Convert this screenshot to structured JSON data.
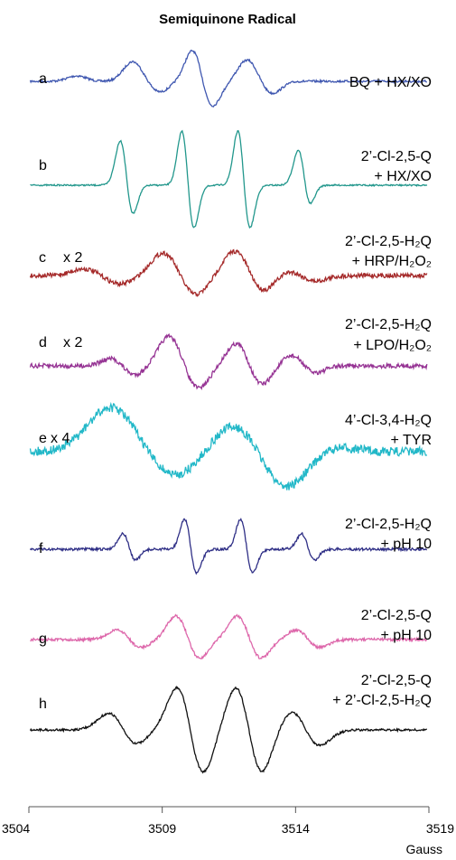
{
  "chart_data": {
    "type": "line",
    "title": "Semiquinone Radical",
    "xlabel": "Gauss",
    "xlim": [
      3504,
      3519
    ],
    "xticks": [
      "3504",
      "3509",
      "3514",
      "3519"
    ],
    "grid": false,
    "series": [
      {
        "id": "a",
        "letter": "a",
        "scale": "",
        "color": "#3f57b0",
        "desc": [
          "BQ + HX/XO"
        ],
        "peaks": [
          [
            3505.8,
            0.15
          ],
          [
            3507.9,
            0.55
          ],
          [
            3508.9,
            -0.3
          ],
          [
            3510.2,
            1.0
          ],
          [
            3510.8,
            -0.8
          ],
          [
            3512.2,
            0.6
          ],
          [
            3513.1,
            -0.35
          ]
        ]
      },
      {
        "id": "b",
        "letter": "b",
        "scale": "",
        "color": "#22978c",
        "desc": [
          "2’-Cl-2,5-Q",
          "+ HX/XO"
        ],
        "peaks": [
          [
            3507.5,
            0.8
          ],
          [
            3507.8,
            -0.6
          ],
          [
            3509.8,
            1.0
          ],
          [
            3510.1,
            -0.8
          ],
          [
            3511.9,
            1.0
          ],
          [
            3512.2,
            -0.8
          ],
          [
            3514.2,
            0.8
          ],
          [
            3514.4,
            -0.6
          ]
        ]
      },
      {
        "id": "c",
        "letter": "c",
        "scale": "x 2",
        "color": "#a52a2a",
        "desc": [
          "2’-Cl-2,5-H₂Q",
          "+ HRP/H₂O₂"
        ],
        "peaks": [
          [
            3506.1,
            0.2
          ],
          [
            3507.4,
            -0.25
          ],
          [
            3509.1,
            0.7
          ],
          [
            3510.2,
            -0.6
          ],
          [
            3511.8,
            0.8
          ],
          [
            3512.7,
            -0.55
          ],
          [
            3513.8,
            0.2
          ],
          [
            3514.6,
            -0.2
          ]
        ]
      },
      {
        "id": "d",
        "letter": "d",
        "scale": "x 2",
        "color": "#963494",
        "desc": [
          "2’-Cl-2,5-H₂Q",
          "+ LPO/H₂O₂"
        ],
        "peaks": [
          [
            3507.3,
            0.35
          ],
          [
            3507.8,
            -0.4
          ],
          [
            3509.3,
            0.9
          ],
          [
            3510.3,
            -0.7
          ],
          [
            3511.9,
            0.8
          ],
          [
            3512.6,
            -0.7
          ],
          [
            3514.0,
            0.45
          ],
          [
            3514.5,
            -0.35
          ]
        ]
      },
      {
        "id": "e",
        "letter": "e",
        "scale": "x 4",
        "color": "#22b8c8",
        "desc": [
          "4’-Cl-3,4-H₂Q",
          "+ TYR"
        ],
        "peaks": [
          [
            3507.1,
            0.9
          ],
          [
            3509.5,
            -0.5
          ],
          [
            3511.8,
            0.6
          ],
          [
            3513.6,
            -0.8
          ],
          [
            3515.1,
            0.15
          ]
        ]
      },
      {
        "id": "f",
        "letter": "f",
        "scale": "",
        "color": "#2f2f86",
        "desc": [
          "2’-Cl-2,5-H₂Q",
          "+ pH 10"
        ],
        "peaks": [
          [
            3507.6,
            0.5
          ],
          [
            3507.9,
            -0.4
          ],
          [
            3509.9,
            1.0
          ],
          [
            3510.2,
            -0.8
          ],
          [
            3512.0,
            1.0
          ],
          [
            3512.3,
            -0.8
          ],
          [
            3514.3,
            0.5
          ],
          [
            3514.6,
            -0.4
          ]
        ]
      },
      {
        "id": "g",
        "letter": "g",
        "scale": "",
        "color": "#dd66aa",
        "desc": [
          "2’-Cl-2,5-Q",
          "+ pH 10"
        ],
        "peaks": [
          [
            3507.4,
            0.35
          ],
          [
            3508.1,
            -0.3
          ],
          [
            3509.6,
            0.85
          ],
          [
            3510.3,
            -0.7
          ],
          [
            3511.9,
            0.85
          ],
          [
            3512.6,
            -0.7
          ],
          [
            3514.1,
            0.35
          ],
          [
            3514.8,
            -0.3
          ]
        ]
      },
      {
        "id": "h",
        "letter": "h",
        "scale": "",
        "color": "#111111",
        "desc": [
          "2’-Cl-2,5-Q",
          "+ 2’-Cl-2,5-H₂Q"
        ],
        "peaks": [
          [
            3507.2,
            0.45
          ],
          [
            3507.8,
            -0.4
          ],
          [
            3509.7,
            1.0
          ],
          [
            3510.4,
            -1.0
          ],
          [
            3511.9,
            1.0
          ],
          [
            3512.6,
            -1.0
          ],
          [
            3514.0,
            0.45
          ],
          [
            3514.7,
            -0.4
          ]
        ]
      }
    ]
  }
}
